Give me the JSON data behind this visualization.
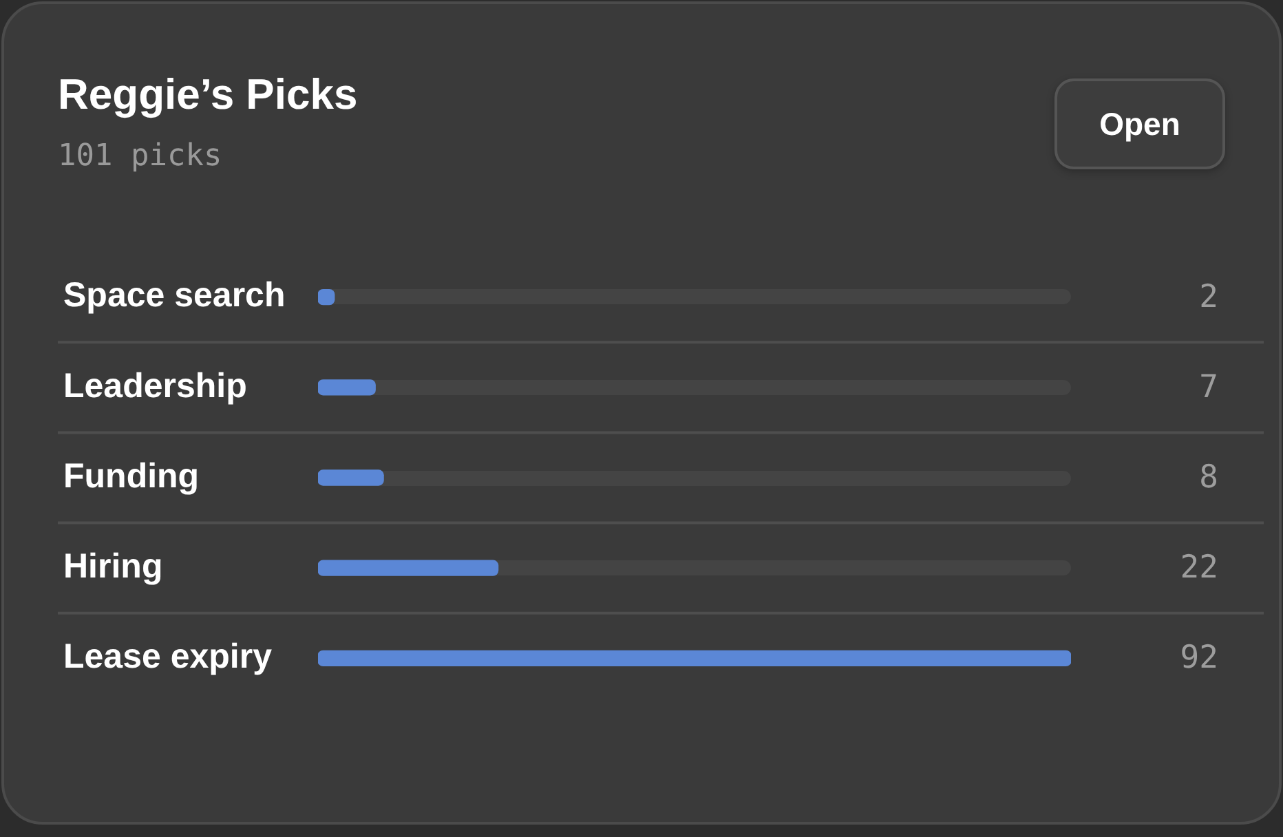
{
  "chart_data": {
    "type": "bar",
    "orientation": "horizontal",
    "title": "Reggie’s Picks",
    "subtitle": "101 picks",
    "annotations": [
      "Open"
    ],
    "categories": [
      "Space search",
      "Leadership",
      "Funding",
      "Hiring",
      "Lease expiry"
    ],
    "values": [
      2,
      7,
      8,
      22,
      92
    ],
    "color": "#5b87d6",
    "data_labels": true,
    "grid": "y",
    "tick_labels": "y"
  }
}
